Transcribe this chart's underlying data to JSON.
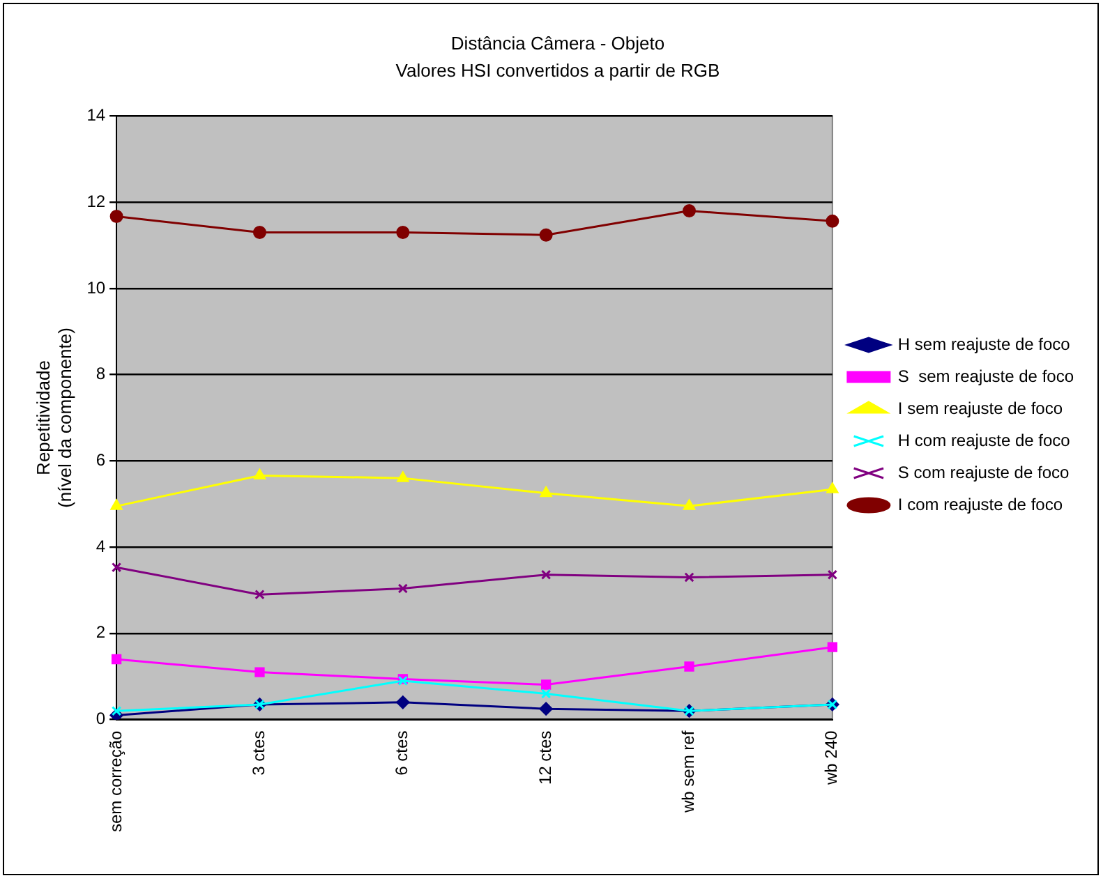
{
  "chart_data": {
    "type": "line",
    "title": "Distância Câmera - Objeto",
    "subtitle": "Valores HSI convertidos a partir de RGB",
    "ylabel": "Repetitividade\n(nível da componente)",
    "categories": [
      "sem correção",
      "3 ctes",
      "6 ctes",
      "12 ctes",
      "wb sem ref",
      "wb 240"
    ],
    "series": [
      {
        "name": "H sem reajuste de foco",
        "color": "#000080",
        "marker": "diamond",
        "values": [
          0.1,
          0.35,
          0.4,
          0.25,
          0.2,
          0.35
        ]
      },
      {
        "name": "S  sem reajuste de foco",
        "color": "#ff00ff",
        "marker": "square",
        "values": [
          1.4,
          1.1,
          0.94,
          0.81,
          1.23,
          1.68
        ]
      },
      {
        "name": "I sem reajuste de foco",
        "color": "#ffff00",
        "marker": "triangle",
        "values": [
          4.95,
          5.66,
          5.6,
          5.25,
          4.95,
          5.34
        ]
      },
      {
        "name": "H com reajuste de foco",
        "color": "#00ffff",
        "marker": "cross",
        "values": [
          0.2,
          0.35,
          0.9,
          0.6,
          0.2,
          0.35
        ]
      },
      {
        "name": "S com reajuste de foco",
        "color": "#800080",
        "marker": "cross",
        "values": [
          3.53,
          2.9,
          3.04,
          3.36,
          3.3,
          3.36
        ]
      },
      {
        "name": "I com reajuste de foco",
        "color": "#800000",
        "marker": "circle",
        "values": [
          11.67,
          11.3,
          11.3,
          11.24,
          11.8,
          11.56
        ]
      }
    ],
    "ylim": [
      0,
      14
    ],
    "yticks": [
      0,
      2,
      4,
      6,
      8,
      10,
      12,
      14
    ],
    "grid": "y",
    "legend": "right",
    "line_style": "solid"
  }
}
